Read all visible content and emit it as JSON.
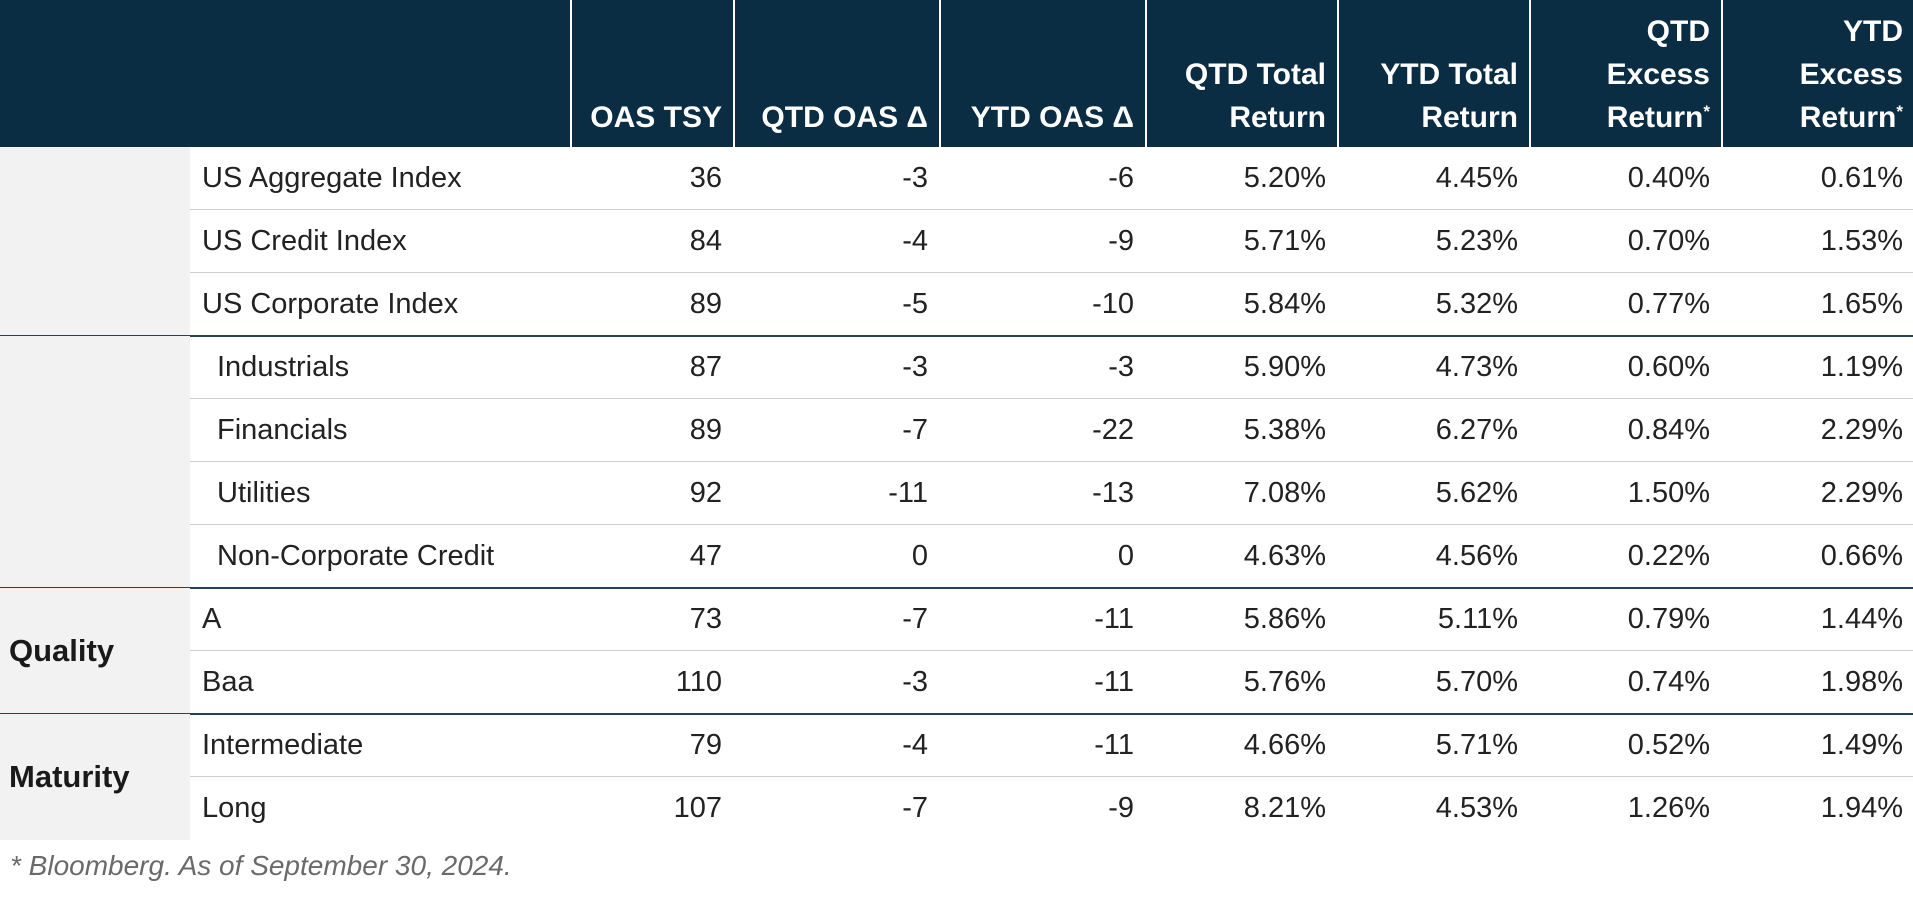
{
  "columns": [
    {
      "key": "oas_tsy",
      "lines": [
        "OAS TSY"
      ],
      "asterisk": false
    },
    {
      "key": "qtd_oas",
      "lines": [
        "QTD OAS Δ"
      ],
      "asterisk": false
    },
    {
      "key": "ytd_oas",
      "lines": [
        "YTD OAS Δ"
      ],
      "asterisk": false
    },
    {
      "key": "qtd_total",
      "lines": [
        "QTD Total",
        "Return"
      ],
      "asterisk": false
    },
    {
      "key": "ytd_total",
      "lines": [
        "YTD Total",
        "Return"
      ],
      "asterisk": false
    },
    {
      "key": "qtd_excess",
      "lines": [
        "QTD",
        "Excess",
        "Return"
      ],
      "asterisk": true
    },
    {
      "key": "ytd_excess",
      "lines": [
        "YTD",
        "Excess",
        "Return"
      ],
      "asterisk": true
    }
  ],
  "asterisk_mark": "*",
  "groups": [
    {
      "label": "",
      "rows": [
        {
          "name": "US Aggregate Index",
          "indent": false,
          "values": [
            "36",
            "-3",
            "-6",
            "5.20%",
            "4.45%",
            "0.40%",
            "0.61%"
          ]
        },
        {
          "name": "US Credit Index",
          "indent": false,
          "values": [
            "84",
            "-4",
            "-9",
            "5.71%",
            "5.23%",
            "0.70%",
            "1.53%"
          ]
        },
        {
          "name": "US Corporate Index",
          "indent": false,
          "values": [
            "89",
            "-5",
            "-10",
            "5.84%",
            "5.32%",
            "0.77%",
            "1.65%"
          ]
        }
      ]
    },
    {
      "label": "",
      "rows": [
        {
          "name": "Industrials",
          "indent": true,
          "values": [
            "87",
            "-3",
            "-3",
            "5.90%",
            "4.73%",
            "0.60%",
            "1.19%"
          ]
        },
        {
          "name": "Financials",
          "indent": true,
          "values": [
            "89",
            "-7",
            "-22",
            "5.38%",
            "6.27%",
            "0.84%",
            "2.29%"
          ]
        },
        {
          "name": "Utilities",
          "indent": true,
          "values": [
            "92",
            "-11",
            "-13",
            "7.08%",
            "5.62%",
            "1.50%",
            "2.29%"
          ]
        },
        {
          "name": "Non-Corporate Credit",
          "indent": true,
          "values": [
            "47",
            "0",
            "0",
            "4.63%",
            "4.56%",
            "0.22%",
            "0.66%"
          ]
        }
      ]
    },
    {
      "label": "Quality",
      "rows": [
        {
          "name": "A",
          "indent": false,
          "values": [
            "73",
            "-7",
            "-11",
            "5.86%",
            "5.11%",
            "0.79%",
            "1.44%"
          ]
        },
        {
          "name": "Baa",
          "indent": false,
          "values": [
            "110",
            "-3",
            "-11",
            "5.76%",
            "5.70%",
            "0.74%",
            "1.98%"
          ]
        }
      ]
    },
    {
      "label": "Maturity",
      "rows": [
        {
          "name": "Intermediate",
          "indent": false,
          "values": [
            "79",
            "-4",
            "-11",
            "4.66%",
            "5.71%",
            "0.52%",
            "1.49%"
          ]
        },
        {
          "name": "Long",
          "indent": false,
          "values": [
            "107",
            "-7",
            "-9",
            "8.21%",
            "4.53%",
            "1.26%",
            "1.94%"
          ]
        }
      ]
    }
  ],
  "footnote": "* Bloomberg. As of September 30, 2024.",
  "colors": {
    "header_bg": "#0b2d43",
    "group_bg": "#f2f2f2",
    "group_rule": "#24425a"
  }
}
